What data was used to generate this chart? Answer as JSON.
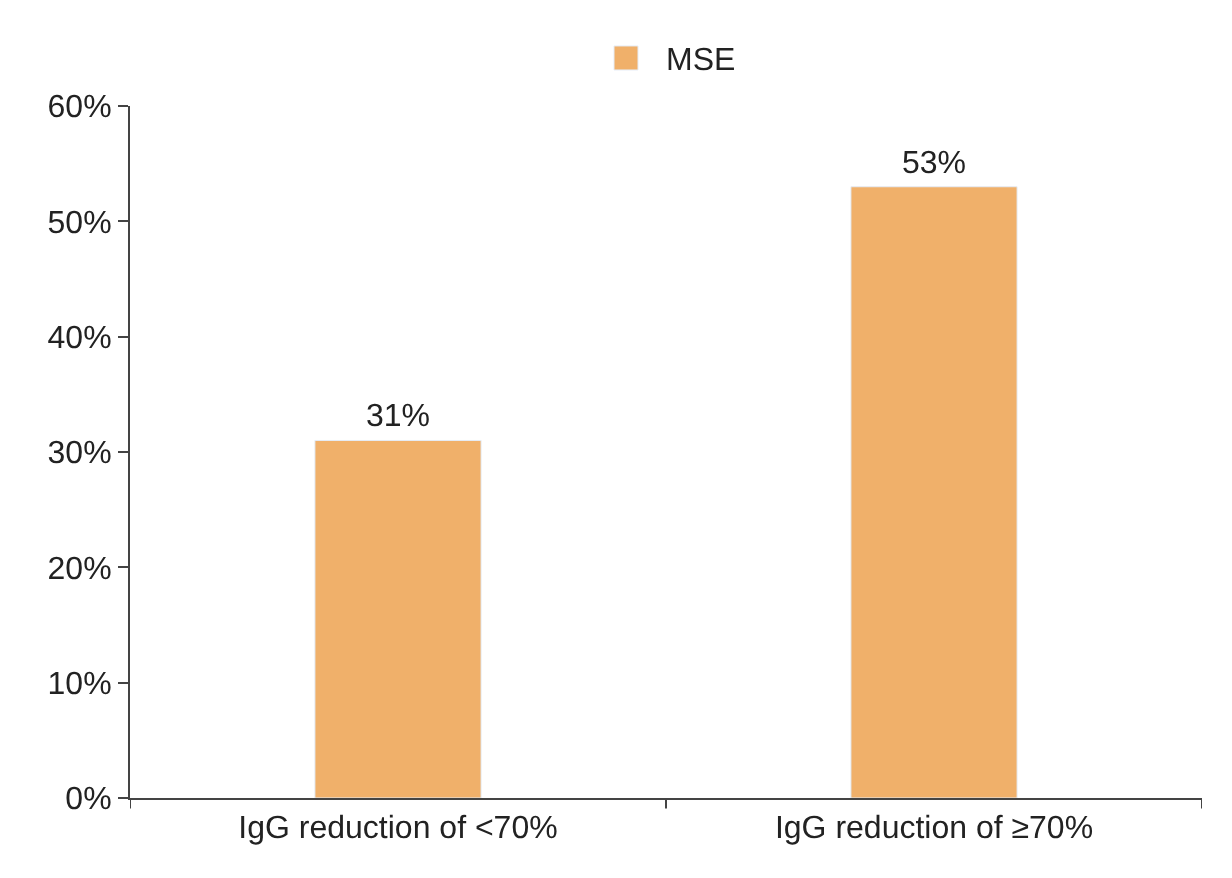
{
  "chart_data": {
    "type": "bar",
    "categories": [
      "IgG reduction of <70%",
      "IgG reduction of ≥70%"
    ],
    "series": [
      {
        "name": "MSE",
        "color": "#f0b06a",
        "values": [
          31,
          53
        ],
        "value_labels": [
          "31%",
          "53%"
        ]
      }
    ],
    "ylim": [
      0,
      60
    ],
    "yticks": [
      {
        "value": 0,
        "label": "0%"
      },
      {
        "value": 10,
        "label": "10%"
      },
      {
        "value": 20,
        "label": "20%"
      },
      {
        "value": 30,
        "label": "30%"
      },
      {
        "value": 40,
        "label": "40%"
      },
      {
        "value": 50,
        "label": "50%"
      },
      {
        "value": 60,
        "label": "60%"
      }
    ],
    "legend": "top"
  }
}
